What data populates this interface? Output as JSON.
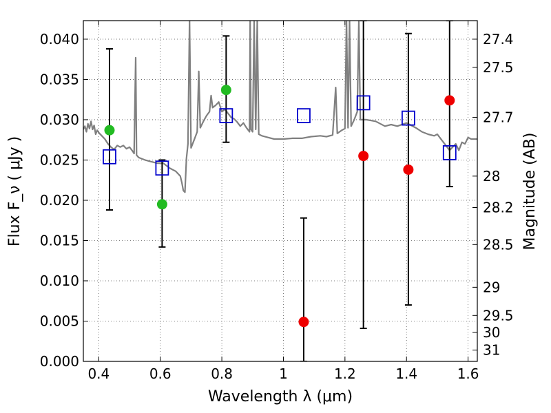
{
  "chart_data": {
    "type": "scatter",
    "xlabel": "Wavelength  λ (μm)",
    "ylabel": "Flux  F_ν  ( μJy )",
    "ylabel_right": "Magnitude (AB)",
    "xlim": [
      0.35,
      1.63
    ],
    "ylim": [
      0.0,
      0.0423
    ],
    "grid": true,
    "x_ticks": [
      0.4,
      0.6,
      0.8,
      1.0,
      1.2,
      1.4,
      1.6
    ],
    "x_tick_labels": [
      "0.4",
      "0.6",
      "0.8",
      "1",
      "1.2",
      "1.4",
      "1.6"
    ],
    "y_ticks": [
      0.0,
      0.005,
      0.01,
      0.015,
      0.02,
      0.025,
      0.03,
      0.035,
      0.04
    ],
    "y_tick_labels": [
      "0.000",
      "0.005",
      "0.010",
      "0.015",
      "0.020",
      "0.025",
      "0.030",
      "0.035",
      "0.040"
    ],
    "mag_ticks": [
      {
        "label": "27.4",
        "flux": 0.04
      },
      {
        "label": "27.5",
        "flux": 0.0365
      },
      {
        "label": "27.7",
        "flux": 0.0303
      },
      {
        "label": "28",
        "flux": 0.023
      },
      {
        "label": "28.2",
        "flux": 0.0191
      },
      {
        "label": "28.5",
        "flux": 0.0145
      },
      {
        "label": "29",
        "flux": 0.0092
      },
      {
        "label": "29.5",
        "flux": 0.0057
      },
      {
        "label": "30",
        "flux": 0.0036
      },
      {
        "label": "31",
        "flux": 0.0014
      }
    ],
    "model_spectrum": {
      "color": "#808080",
      "points": [
        [
          0.35,
          0.0288
        ],
        [
          0.355,
          0.0292
        ],
        [
          0.36,
          0.0285
        ],
        [
          0.365,
          0.0295
        ],
        [
          0.37,
          0.0289
        ],
        [
          0.375,
          0.0298
        ],
        [
          0.38,
          0.0288
        ],
        [
          0.385,
          0.0293
        ],
        [
          0.39,
          0.0282
        ],
        [
          0.395,
          0.0287
        ],
        [
          0.4,
          0.0284
        ],
        [
          0.41,
          0.028
        ],
        [
          0.42,
          0.0276
        ],
        [
          0.43,
          0.027
        ],
        [
          0.44,
          0.0266
        ],
        [
          0.45,
          0.0263
        ],
        [
          0.46,
          0.0268
        ],
        [
          0.47,
          0.0266
        ],
        [
          0.48,
          0.0268
        ],
        [
          0.49,
          0.0264
        ],
        [
          0.5,
          0.0266
        ],
        [
          0.51,
          0.0261
        ],
        [
          0.515,
          0.0258
        ],
        [
          0.52,
          0.0377
        ],
        [
          0.523,
          0.0256
        ],
        [
          0.53,
          0.0253
        ],
        [
          0.55,
          0.025
        ],
        [
          0.57,
          0.0248
        ],
        [
          0.59,
          0.0246
        ],
        [
          0.61,
          0.0246
        ],
        [
          0.63,
          0.024
        ],
        [
          0.65,
          0.0236
        ],
        [
          0.665,
          0.023
        ],
        [
          0.67,
          0.0222
        ],
        [
          0.675,
          0.0212
        ],
        [
          0.68,
          0.021
        ],
        [
          0.685,
          0.0252
        ],
        [
          0.69,
          0.027
        ],
        [
          0.695,
          0.0423
        ],
        [
          0.7,
          0.0265
        ],
        [
          0.71,
          0.0275
        ],
        [
          0.72,
          0.0285
        ],
        [
          0.725,
          0.036
        ],
        [
          0.73,
          0.029
        ],
        [
          0.74,
          0.0298
        ],
        [
          0.75,
          0.0305
        ],
        [
          0.76,
          0.031
        ],
        [
          0.765,
          0.033
        ],
        [
          0.77,
          0.0315
        ],
        [
          0.78,
          0.0318
        ],
        [
          0.79,
          0.0322
        ],
        [
          0.8,
          0.031
        ],
        [
          0.81,
          0.0313
        ],
        [
          0.82,
          0.0308
        ],
        [
          0.83,
          0.0303
        ],
        [
          0.84,
          0.0301
        ],
        [
          0.85,
          0.0297
        ],
        [
          0.86,
          0.0292
        ],
        [
          0.87,
          0.0296
        ],
        [
          0.88,
          0.029
        ],
        [
          0.89,
          0.0285
        ],
        [
          0.892,
          0.0423
        ],
        [
          0.895,
          0.0288
        ],
        [
          0.9,
          0.0285
        ],
        [
          0.905,
          0.0423
        ],
        [
          0.91,
          0.0288
        ],
        [
          0.915,
          0.0423
        ],
        [
          0.92,
          0.0282
        ],
        [
          0.93,
          0.028
        ],
        [
          0.95,
          0.0278
        ],
        [
          0.97,
          0.0276
        ],
        [
          1.0,
          0.0276
        ],
        [
          1.03,
          0.0277
        ],
        [
          1.06,
          0.0277
        ],
        [
          1.09,
          0.0279
        ],
        [
          1.12,
          0.028
        ],
        [
          1.14,
          0.0279
        ],
        [
          1.16,
          0.0281
        ],
        [
          1.17,
          0.034
        ],
        [
          1.175,
          0.0283
        ],
        [
          1.19,
          0.0287
        ],
        [
          1.2,
          0.0289
        ],
        [
          1.205,
          0.0423
        ],
        [
          1.21,
          0.029
        ],
        [
          1.215,
          0.0423
        ],
        [
          1.22,
          0.0292
        ],
        [
          1.23,
          0.03
        ],
        [
          1.24,
          0.031
        ],
        [
          1.245,
          0.0423
        ],
        [
          1.25,
          0.03
        ],
        [
          1.27,
          0.03
        ],
        [
          1.3,
          0.0298
        ],
        [
          1.33,
          0.0292
        ],
        [
          1.35,
          0.0294
        ],
        [
          1.37,
          0.0292
        ],
        [
          1.4,
          0.0296
        ],
        [
          1.43,
          0.029
        ],
        [
          1.45,
          0.0285
        ],
        [
          1.47,
          0.0282
        ],
        [
          1.49,
          0.028
        ],
        [
          1.5,
          0.0282
        ],
        [
          1.52,
          0.0272
        ],
        [
          1.54,
          0.0262
        ],
        [
          1.56,
          0.027
        ],
        [
          1.57,
          0.0262
        ],
        [
          1.58,
          0.0272
        ],
        [
          1.59,
          0.027
        ],
        [
          1.6,
          0.0278
        ],
        [
          1.61,
          0.0276
        ],
        [
          1.63,
          0.0276
        ]
      ]
    },
    "model_bands": {
      "marker": "open-square",
      "color": "#0000cc",
      "points": [
        {
          "x": 0.435,
          "y": 0.0254
        },
        {
          "x": 0.606,
          "y": 0.024
        },
        {
          "x": 0.814,
          "y": 0.0305
        },
        {
          "x": 1.066,
          "y": 0.0305
        },
        {
          "x": 1.26,
          "y": 0.0321
        },
        {
          "x": 1.406,
          "y": 0.0302
        },
        {
          "x": 1.54,
          "y": 0.0259
        }
      ]
    },
    "observations": [
      {
        "x": 0.435,
        "y": 0.0287,
        "err_low": 0.0188,
        "err_high": 0.0388,
        "color": "#22bb22"
      },
      {
        "x": 0.606,
        "y": 0.0195,
        "err_low": 0.0142,
        "err_high": 0.025,
        "color": "#22bb22"
      },
      {
        "x": 0.814,
        "y": 0.0337,
        "err_low": 0.0272,
        "err_high": 0.0404,
        "color": "#22bb22"
      },
      {
        "x": 1.066,
        "y": 0.0049,
        "err_low": 0.0,
        "err_high": 0.0178,
        "color": "#ee0000"
      },
      {
        "x": 1.26,
        "y": 0.0255,
        "err_low": 0.0041,
        "err_high": 0.0423,
        "color": "#ee0000"
      },
      {
        "x": 1.406,
        "y": 0.0238,
        "err_low": 0.007,
        "err_high": 0.0407,
        "color": "#ee0000"
      },
      {
        "x": 1.54,
        "y": 0.0324,
        "err_low": 0.0217,
        "err_high": 0.0423,
        "color": "#ee0000"
      }
    ]
  }
}
